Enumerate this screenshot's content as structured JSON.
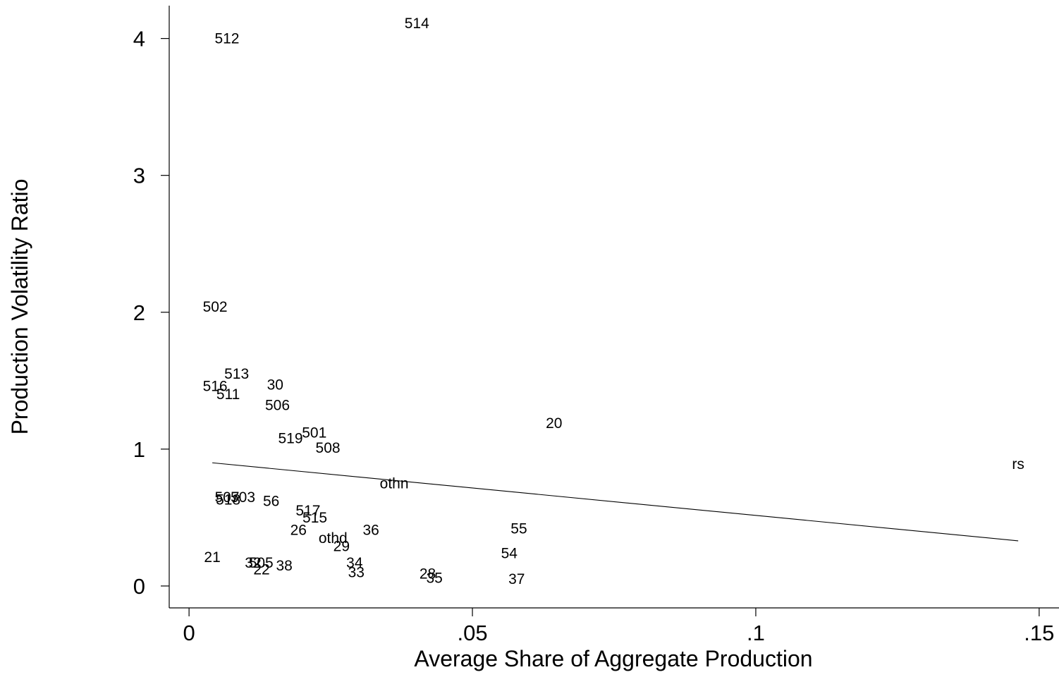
{
  "chart_data": {
    "type": "scatter",
    "title": "",
    "xlabel": "Average Share of Aggregate Production",
    "ylabel": "Production Volatility Ratio",
    "xlim": [
      -0.0035,
      0.1535
    ],
    "ylim": [
      -0.16,
      4.24
    ],
    "xticks": [
      0,
      0.05,
      0.1,
      0.15
    ],
    "xtick_labels": [
      "0",
      ".05",
      ".1",
      ".15"
    ],
    "yticks": [
      0,
      1,
      2,
      3,
      4
    ],
    "ytick_labels": [
      "0",
      "1",
      "2",
      "3",
      "4"
    ],
    "grid": false,
    "legend": "none",
    "color": "#000000",
    "points": [
      {
        "label": "512",
        "x": 0.0067,
        "y": 4.0
      },
      {
        "label": "514",
        "x": 0.0402,
        "y": 4.11
      },
      {
        "label": "502",
        "x": 0.0046,
        "y": 2.04
      },
      {
        "label": "513",
        "x": 0.0084,
        "y": 1.55
      },
      {
        "label": "516",
        "x": 0.0046,
        "y": 1.46
      },
      {
        "label": "511",
        "x": 0.0069,
        "y": 1.4
      },
      {
        "label": "30",
        "x": 0.0152,
        "y": 1.47
      },
      {
        "label": "506",
        "x": 0.0156,
        "y": 1.32
      },
      {
        "label": "20",
        "x": 0.0644,
        "y": 1.19
      },
      {
        "label": "501",
        "x": 0.0221,
        "y": 1.12
      },
      {
        "label": "519",
        "x": 0.0179,
        "y": 1.08
      },
      {
        "label": "508",
        "x": 0.0245,
        "y": 1.01
      },
      {
        "label": "rs",
        "x": 0.1463,
        "y": 0.89
      },
      {
        "label": "othn",
        "x": 0.0362,
        "y": 0.75
      },
      {
        "label": "507",
        "x": 0.0067,
        "y": 0.65
      },
      {
        "label": "503",
        "x": 0.0095,
        "y": 0.65
      },
      {
        "label": "518",
        "x": 0.0069,
        "y": 0.63
      },
      {
        "label": "56",
        "x": 0.0145,
        "y": 0.62
      },
      {
        "label": "517",
        "x": 0.021,
        "y": 0.55
      },
      {
        "label": "515",
        "x": 0.0222,
        "y": 0.5
      },
      {
        "label": "55",
        "x": 0.0582,
        "y": 0.42
      },
      {
        "label": "36",
        "x": 0.0321,
        "y": 0.41
      },
      {
        "label": "26",
        "x": 0.0193,
        "y": 0.41
      },
      {
        "label": "othd",
        "x": 0.0254,
        "y": 0.35
      },
      {
        "label": "29",
        "x": 0.0269,
        "y": 0.29
      },
      {
        "label": "54",
        "x": 0.0565,
        "y": 0.24
      },
      {
        "label": "21",
        "x": 0.0041,
        "y": 0.21
      },
      {
        "label": "32",
        "x": 0.0113,
        "y": 0.17
      },
      {
        "label": "505",
        "x": 0.0127,
        "y": 0.17
      },
      {
        "label": "34",
        "x": 0.0292,
        "y": 0.17
      },
      {
        "label": "38",
        "x": 0.0168,
        "y": 0.15
      },
      {
        "label": "22",
        "x": 0.0128,
        "y": 0.12
      },
      {
        "label": "33",
        "x": 0.0295,
        "y": 0.1
      },
      {
        "label": "28",
        "x": 0.0421,
        "y": 0.09
      },
      {
        "label": "35",
        "x": 0.0433,
        "y": 0.06
      },
      {
        "label": "37",
        "x": 0.0578,
        "y": 0.05
      }
    ],
    "fit_line": {
      "x": [
        0.0041,
        0.1463
      ],
      "y": [
        0.9,
        0.33
      ]
    }
  }
}
